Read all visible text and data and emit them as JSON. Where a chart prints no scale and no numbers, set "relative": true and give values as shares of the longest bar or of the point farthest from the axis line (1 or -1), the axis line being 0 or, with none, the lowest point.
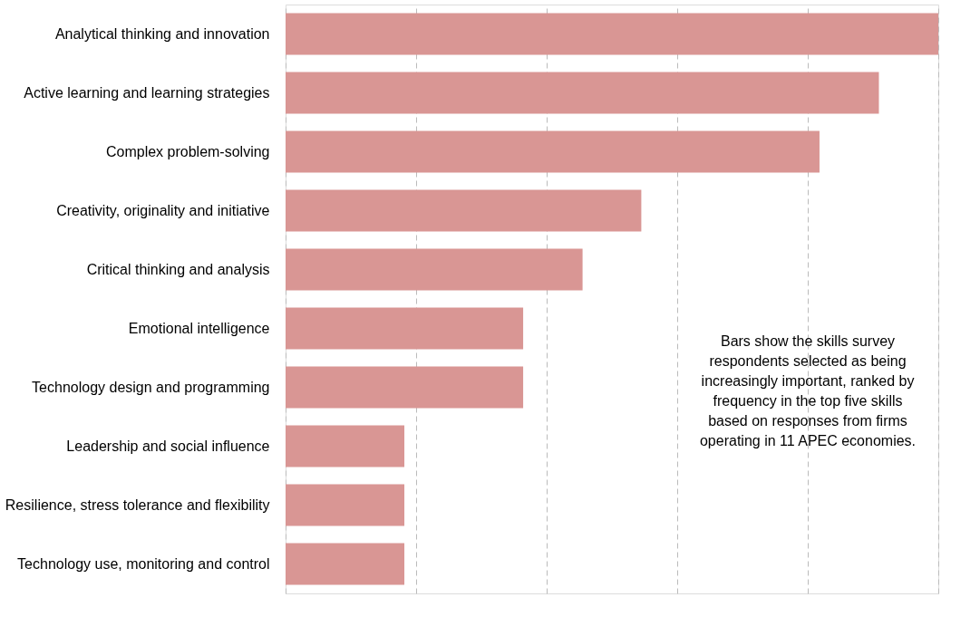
{
  "chart_data": {
    "type": "bar",
    "orientation": "horizontal",
    "relative": true,
    "grid": "x",
    "color": "#d99694",
    "categories": [
      "Analytical thinking and innovation",
      "Active learning and learning strategies",
      "Complex problem-solving",
      "Creativity, originality and initiative",
      "Critical thinking and analysis",
      "Emotional intelligence",
      "Technology design and programming",
      "Leadership and social influence",
      "Resilience, stress tolerance and flexibility",
      "Technology use, monitoring and control"
    ],
    "values": [
      1,
      0.909,
      0.818,
      0.545,
      0.455,
      0.364,
      0.364,
      0.182,
      0.182,
      0.182
    ],
    "annotations": [
      "Bars show the skills survey respondents selected as being increasingly important, ranked by frequency in the top five skills based on responses from firms operating in 11 APEC economies."
    ]
  }
}
